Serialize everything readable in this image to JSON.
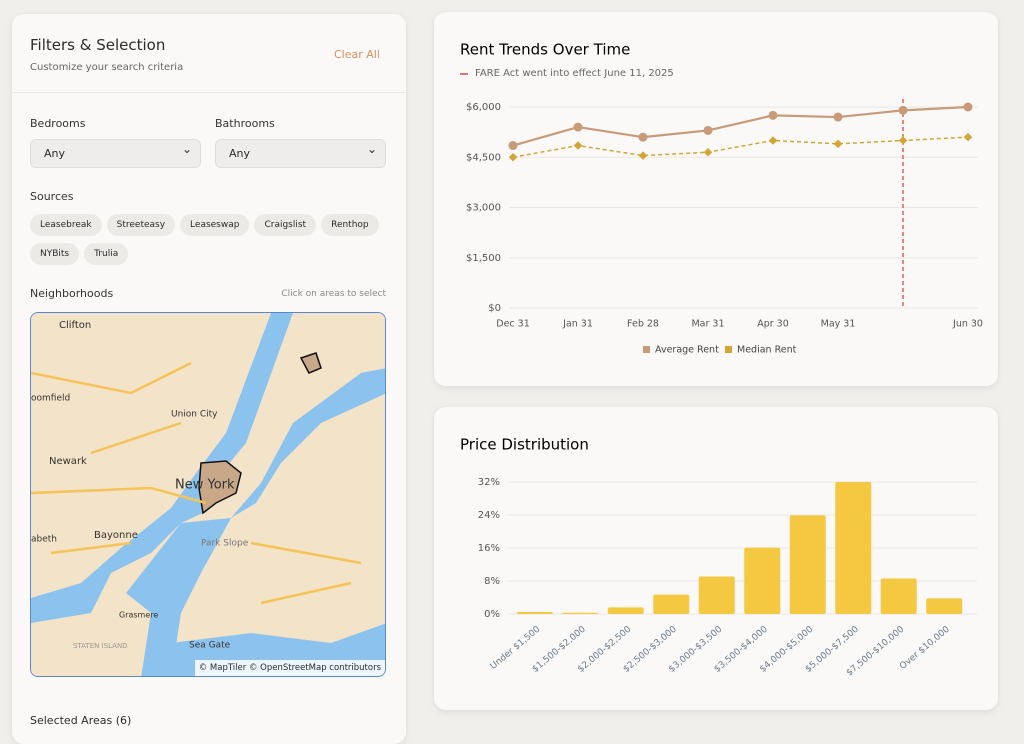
{
  "filters": {
    "title": "Filters & Selection",
    "subtitle": "Customize your search criteria",
    "clear": "Clear All",
    "bedrooms": {
      "label": "Bedrooms",
      "value": "Any"
    },
    "bathrooms": {
      "label": "Bathrooms",
      "value": "Any"
    },
    "sources": {
      "label": "Sources",
      "items": [
        "Leasebreak",
        "Streeteasy",
        "Leaseswap",
        "Craigslist",
        "Renthop",
        "NYBits",
        "Trulia"
      ]
    },
    "neighborhoods": {
      "label": "Neighborhoods",
      "hint": "Click on areas to select",
      "attribution": "© MapTiler © OpenStreetMap contributors",
      "map_labels": [
        "Clifton",
        "Union City",
        "Newark",
        "Bayonne",
        "New York",
        "Park Slope",
        "Sea Gate",
        "oomfield",
        "abeth",
        "Grasmere",
        "STATEN ISLAND"
      ]
    },
    "selected_areas": "Selected Areas (6)"
  },
  "chart_data": [
    {
      "type": "line",
      "title": "Rent Trends Over Time",
      "annotation": {
        "text": "FARE Act went into effect June 11, 2025",
        "at": 6,
        "color": "#e0483b"
      },
      "categories": [
        "Dec 31",
        "Jan 31",
        "Feb 28",
        "Mar 31",
        "Apr 30",
        "May 31",
        null,
        "Jun 30"
      ],
      "series": [
        {
          "name": "Average Rent",
          "color": "#c99a78",
          "values": [
            4850,
            5400,
            5100,
            5300,
            5750,
            5700,
            5900,
            6000
          ]
        },
        {
          "name": "Median Rent",
          "color": "#d4a534",
          "values": [
            4500,
            4850,
            4550,
            4650,
            5000,
            4900,
            5000,
            5100
          ]
        }
      ],
      "ylim": [
        0,
        6000
      ],
      "yticks": [
        {
          "value": 0,
          "label": "$0"
        },
        {
          "value": 1500,
          "label": "$1,500"
        },
        {
          "value": 3000,
          "label": "$3,000"
        },
        {
          "value": 4500,
          "label": "$4,500"
        },
        {
          "value": 6000,
          "label": "$6,000"
        }
      ],
      "grid": true,
      "legend": "bottom"
    },
    {
      "type": "bar",
      "title": "Price Distribution",
      "categories": [
        "Under $1,500",
        "$1,500-$2,000",
        "$2,000-$2,500",
        "$2,500-$3,000",
        "$3,000-$3,500",
        "$3,500-$4,000",
        "$4,000-$5,000",
        "$5,000-$7,500",
        "$7,500-$10,000",
        "Over $10,000"
      ],
      "values": [
        0.5,
        0.3,
        1.6,
        4.7,
        9.1,
        16.1,
        23.9,
        32,
        8.6,
        3.8
      ],
      "color": "#f5c842",
      "ylim": [
        0,
        32
      ],
      "yticks": [
        {
          "value": 0,
          "label": "0%"
        },
        {
          "value": 8,
          "label": "8%"
        },
        {
          "value": 16,
          "label": "16%"
        },
        {
          "value": 24,
          "label": "24%"
        },
        {
          "value": 32,
          "label": "32%"
        }
      ],
      "grid": true
    }
  ]
}
